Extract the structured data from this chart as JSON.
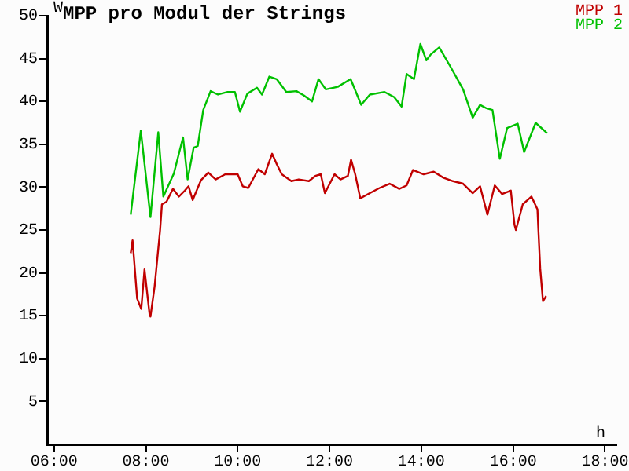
{
  "chart_data": {
    "type": "line",
    "title": "MPP pro Modul der Strings",
    "xlabel": "h",
    "ylabel": "W",
    "xlim": [
      5.85,
      18.25
    ],
    "xticks": [
      {
        "value": 6,
        "label": "06:00"
      },
      {
        "value": 8,
        "label": "08:00"
      },
      {
        "value": 10,
        "label": "10:00"
      },
      {
        "value": 12,
        "label": "12:00"
      },
      {
        "value": 14,
        "label": "14:00"
      },
      {
        "value": 16,
        "label": "16:00"
      },
      {
        "value": 18,
        "label": "18:00"
      }
    ],
    "ylim": [
      0,
      50
    ],
    "yticks": [
      5,
      10,
      15,
      20,
      25,
      30,
      35,
      40,
      45,
      50
    ],
    "grid": false,
    "legend": "top right",
    "marker": "none",
    "line_style": "solid",
    "series": [
      {
        "name": "MPP 1",
        "color": "#c00000",
        "x": [
          7.67,
          7.71,
          7.81,
          7.9,
          7.97,
          8.08,
          8.1,
          8.19,
          8.31,
          8.35,
          8.45,
          8.59,
          8.72,
          8.85,
          8.93,
          9.02,
          9.2,
          9.36,
          9.52,
          9.73,
          10.0,
          10.11,
          10.23,
          10.45,
          10.59,
          10.75,
          10.85,
          10.96,
          11.17,
          11.33,
          11.55,
          11.69,
          11.81,
          11.9,
          12.11,
          12.24,
          12.4,
          12.47,
          12.56,
          12.67,
          12.88,
          13.09,
          13.31,
          13.52,
          13.68,
          13.82,
          14.05,
          14.27,
          14.48,
          14.69,
          14.91,
          15.12,
          15.28,
          15.44,
          15.6,
          15.76,
          15.95,
          16.03,
          16.06,
          16.21,
          16.4,
          16.53,
          16.55,
          16.59,
          16.65,
          16.72
        ],
        "values": [
          22.3,
          23.8,
          17,
          15.8,
          20.4,
          15.2,
          14.9,
          18.4,
          25,
          28,
          28.3,
          29.8,
          28.9,
          29.6,
          30.1,
          28.5,
          30.8,
          31.7,
          30.9,
          31.5,
          31.5,
          30.1,
          29.9,
          32.1,
          31.5,
          33.9,
          32.7,
          31.5,
          30.7,
          30.9,
          30.7,
          31.3,
          31.5,
          29.3,
          31.5,
          30.9,
          31.3,
          33.2,
          31.5,
          28.7,
          29.3,
          29.9,
          30.4,
          29.8,
          30.2,
          32,
          31.5,
          31.8,
          31.1,
          30.7,
          30.4,
          29.3,
          30.1,
          26.8,
          30.2,
          29.2,
          29.6,
          25.6,
          25,
          28,
          28.9,
          27.4,
          25,
          20.5,
          16.7,
          17.3
        ]
      },
      {
        "name": "MPP 2",
        "color": "#00c000",
        "x": [
          7.67,
          7.89,
          8.1,
          8.27,
          8.38,
          8.61,
          8.81,
          8.91,
          9.04,
          9.13,
          9.25,
          9.41,
          9.57,
          9.78,
          9.94,
          10.05,
          10.21,
          10.42,
          10.53,
          10.69,
          10.85,
          11.06,
          11.28,
          11.44,
          11.62,
          11.76,
          11.92,
          12.18,
          12.46,
          12.69,
          12.88,
          13.2,
          13.41,
          13.57,
          13.68,
          13.84,
          13.98,
          14.11,
          14.21,
          14.39,
          14.64,
          14.91,
          15.12,
          15.28,
          15.42,
          15.55,
          15.71,
          15.87,
          16.1,
          16.24,
          16.49,
          16.74
        ],
        "values": [
          26.8,
          36.6,
          26.5,
          36.4,
          28.9,
          31.6,
          35.8,
          30.9,
          34.6,
          34.8,
          39,
          41.2,
          40.8,
          41.1,
          41.1,
          38.8,
          40.9,
          41.6,
          40.8,
          42.9,
          42.6,
          41.1,
          41.2,
          40.7,
          40,
          42.6,
          41.4,
          41.7,
          42.6,
          39.6,
          40.8,
          41.1,
          40.5,
          39.4,
          43.2,
          42.6,
          46.7,
          44.8,
          45.5,
          46.3,
          44,
          41.4,
          38.1,
          39.6,
          39.2,
          39,
          33.3,
          36.9,
          37.4,
          34.1,
          37.5,
          36.3
        ]
      }
    ]
  }
}
